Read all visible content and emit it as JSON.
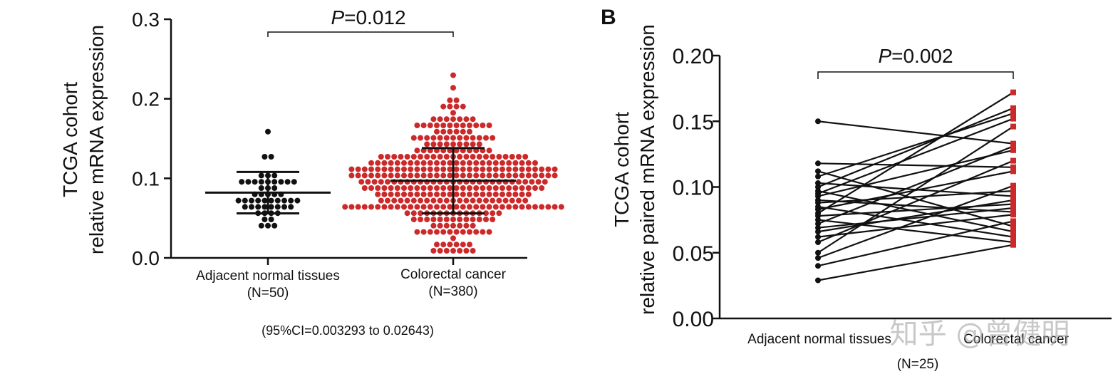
{
  "colors": {
    "normal": "#111111",
    "cancer": "#cc2a2a",
    "axis": "#111111"
  },
  "chart_data": [
    {
      "type": "scatter",
      "panel": "A",
      "ylabel": [
        "TCGA cohort",
        "relative mRNA expression"
      ],
      "ylim": [
        0,
        0.3
      ],
      "yticks": [
        "0.0",
        "0.1",
        "0.2",
        "0.3"
      ],
      "categories": [
        {
          "label": "Adjacent normal tissues",
          "n_label": "(N=50)",
          "n": 50,
          "mean": 0.082,
          "sd_low": 0.056,
          "sd_high": 0.108,
          "min": 0.04,
          "max": 0.156
        },
        {
          "label": "Colorectal cancer",
          "n_label": "(N=380)",
          "n": 380,
          "mean": 0.097,
          "sd_low": 0.056,
          "sd_high": 0.138,
          "min": 0.012,
          "max": 0.245
        }
      ],
      "pvalue_label": "P",
      "pvalue_text": "=0.012",
      "ci_note": "(95%CI=0.003293 to 0.02643)"
    },
    {
      "type": "line",
      "panel": "B",
      "panel_label": "B",
      "ylabel": [
        "TCGA cohort",
        "relative paired mRNA expression"
      ],
      "ylim": [
        0,
        0.2
      ],
      "yticks": [
        "0.00",
        "0.05",
        "0.10",
        "0.15",
        "0.20"
      ],
      "x": [
        "Adjacent normal tissues",
        "Colorectal cancer"
      ],
      "n_label": "(N=25)",
      "pvalue_label": "P",
      "pvalue_text": "=0.002",
      "pairs": [
        [
          0.15,
          0.133
        ],
        [
          0.118,
          0.115
        ],
        [
          0.112,
          0.07
        ],
        [
          0.108,
          0.156
        ],
        [
          0.103,
          0.093
        ],
        [
          0.1,
          0.16
        ],
        [
          0.097,
          0.066
        ],
        [
          0.095,
          0.152
        ],
        [
          0.093,
          0.128
        ],
        [
          0.09,
          0.081
        ],
        [
          0.088,
          0.097
        ],
        [
          0.085,
          0.062
        ],
        [
          0.083,
          0.112
        ],
        [
          0.08,
          0.172
        ],
        [
          0.078,
          0.087
        ],
        [
          0.075,
          0.058
        ],
        [
          0.072,
          0.131
        ],
        [
          0.069,
          0.084
        ],
        [
          0.066,
          0.09
        ],
        [
          0.062,
          0.079
        ],
        [
          0.058,
          0.12
        ],
        [
          0.05,
          0.146
        ],
        [
          0.046,
          0.101
        ],
        [
          0.04,
          0.074
        ],
        [
          0.029,
          0.056
        ]
      ]
    }
  ],
  "watermark": "知乎 @曾健明"
}
